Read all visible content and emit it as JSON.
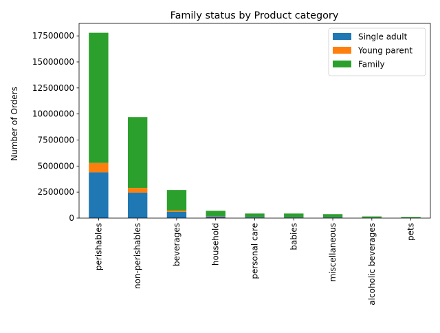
{
  "chart_data": {
    "type": "bar",
    "stacked": true,
    "title": "Family status by Product category",
    "xlabel": "",
    "ylabel": "Number of Orders",
    "ylim": [
      0,
      18700000
    ],
    "yticks": [
      0,
      2500000,
      5000000,
      7500000,
      10000000,
      12500000,
      15000000,
      17500000
    ],
    "grid": false,
    "legend_position": "top-right",
    "categories": [
      "perishables",
      "non-perishables",
      "beverages",
      "household",
      "personal care",
      "babies",
      "miscellaneous",
      "alcoholic beverages",
      "pets"
    ],
    "series": [
      {
        "name": "Single adult",
        "color": "#1f77b4",
        "values": [
          4400000,
          2450000,
          600000,
          160000,
          90000,
          70000,
          70000,
          30000,
          20000
        ]
      },
      {
        "name": "Young parent",
        "color": "#ff7f0e",
        "values": [
          900000,
          450000,
          130000,
          40000,
          20000,
          20000,
          20000,
          10000,
          5000
        ]
      },
      {
        "name": "Family",
        "color": "#2ca02c",
        "values": [
          12500000,
          6800000,
          1970000,
          500000,
          330000,
          350000,
          290000,
          120000,
          80000
        ]
      }
    ]
  }
}
